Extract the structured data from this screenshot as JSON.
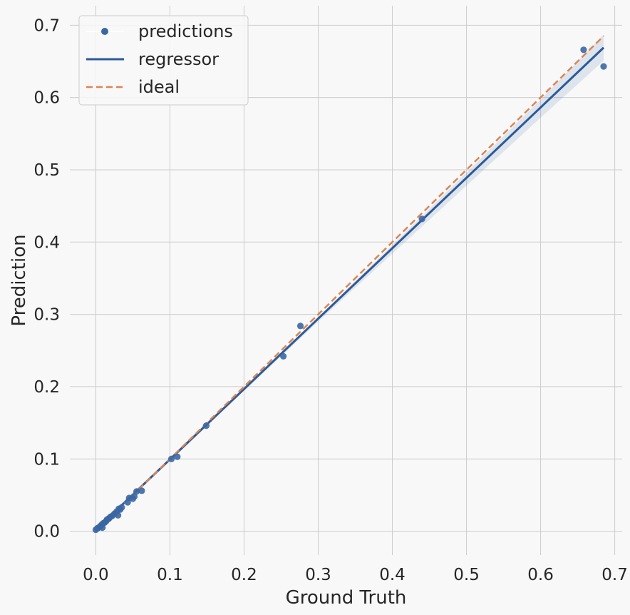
{
  "chart_data": {
    "type": "scatter",
    "title": "",
    "xlabel": "Ground Truth",
    "ylabel": "Prediction",
    "xlim": [
      -0.035,
      0.71
    ],
    "ylim": [
      -0.033,
      0.727
    ],
    "xticks": [
      0.0,
      0.1,
      0.2,
      0.3,
      0.4,
      0.5,
      0.6,
      0.7
    ],
    "yticks": [
      0.0,
      0.1,
      0.2,
      0.3,
      0.4,
      0.5,
      0.6,
      0.7
    ],
    "xtick_labels": [
      "0.0",
      "0.1",
      "0.2",
      "0.3",
      "0.4",
      "0.5",
      "0.6",
      "0.7"
    ],
    "ytick_labels": [
      "0.0",
      "0.1",
      "0.2",
      "0.3",
      "0.4",
      "0.5",
      "0.6",
      "0.7"
    ],
    "grid": true,
    "legend_position": "top-left",
    "colors": {
      "background": "#f8f8f8",
      "plot_background": "#f8f8f8",
      "grid": "#cccccc",
      "points": "#3a67a3",
      "regressor": "#2b5a98",
      "ci_band": "#2b5a98",
      "ideal": "#dd8452"
    },
    "series": [
      {
        "name": "predictions",
        "kind": "points",
        "points": [
          [
            0.0,
            0.002
          ],
          [
            0.002,
            0.004
          ],
          [
            0.004,
            0.005
          ],
          [
            0.006,
            0.007
          ],
          [
            0.008,
            0.009
          ],
          [
            0.009,
            0.005
          ],
          [
            0.01,
            0.011
          ],
          [
            0.012,
            0.012
          ],
          [
            0.014,
            0.014
          ],
          [
            0.015,
            0.016
          ],
          [
            0.017,
            0.017
          ],
          [
            0.018,
            0.018
          ],
          [
            0.02,
            0.02
          ],
          [
            0.022,
            0.021
          ],
          [
            0.025,
            0.024
          ],
          [
            0.028,
            0.027
          ],
          [
            0.03,
            0.022
          ],
          [
            0.031,
            0.031
          ],
          [
            0.033,
            0.03
          ],
          [
            0.035,
            0.033
          ],
          [
            0.043,
            0.04
          ],
          [
            0.045,
            0.046
          ],
          [
            0.05,
            0.045
          ],
          [
            0.052,
            0.048
          ],
          [
            0.055,
            0.055
          ],
          [
            0.062,
            0.056
          ],
          [
            0.102,
            0.1
          ],
          [
            0.11,
            0.103
          ],
          [
            0.149,
            0.146
          ],
          [
            0.253,
            0.242
          ],
          [
            0.276,
            0.284
          ],
          [
            0.44,
            0.432
          ],
          [
            0.658,
            0.666
          ],
          [
            0.685,
            0.643
          ]
        ]
      },
      {
        "name": "regressor",
        "kind": "line",
        "points": [
          [
            0.0,
            0.002
          ],
          [
            0.685,
            0.669
          ]
        ],
        "ci_band": {
          "x": [
            0.0,
            0.1,
            0.2,
            0.3,
            0.4,
            0.5,
            0.6,
            0.685
          ],
          "lower": [
            0.0005,
            0.0975,
            0.194,
            0.29,
            0.384,
            0.478,
            0.572,
            0.651
          ],
          "upper": [
            0.0035,
            0.1005,
            0.198,
            0.296,
            0.396,
            0.496,
            0.597,
            0.687
          ]
        }
      },
      {
        "name": "ideal",
        "kind": "dashed-line",
        "points": [
          [
            0.0,
            0.0
          ],
          [
            0.685,
            0.685
          ]
        ]
      }
    ]
  }
}
